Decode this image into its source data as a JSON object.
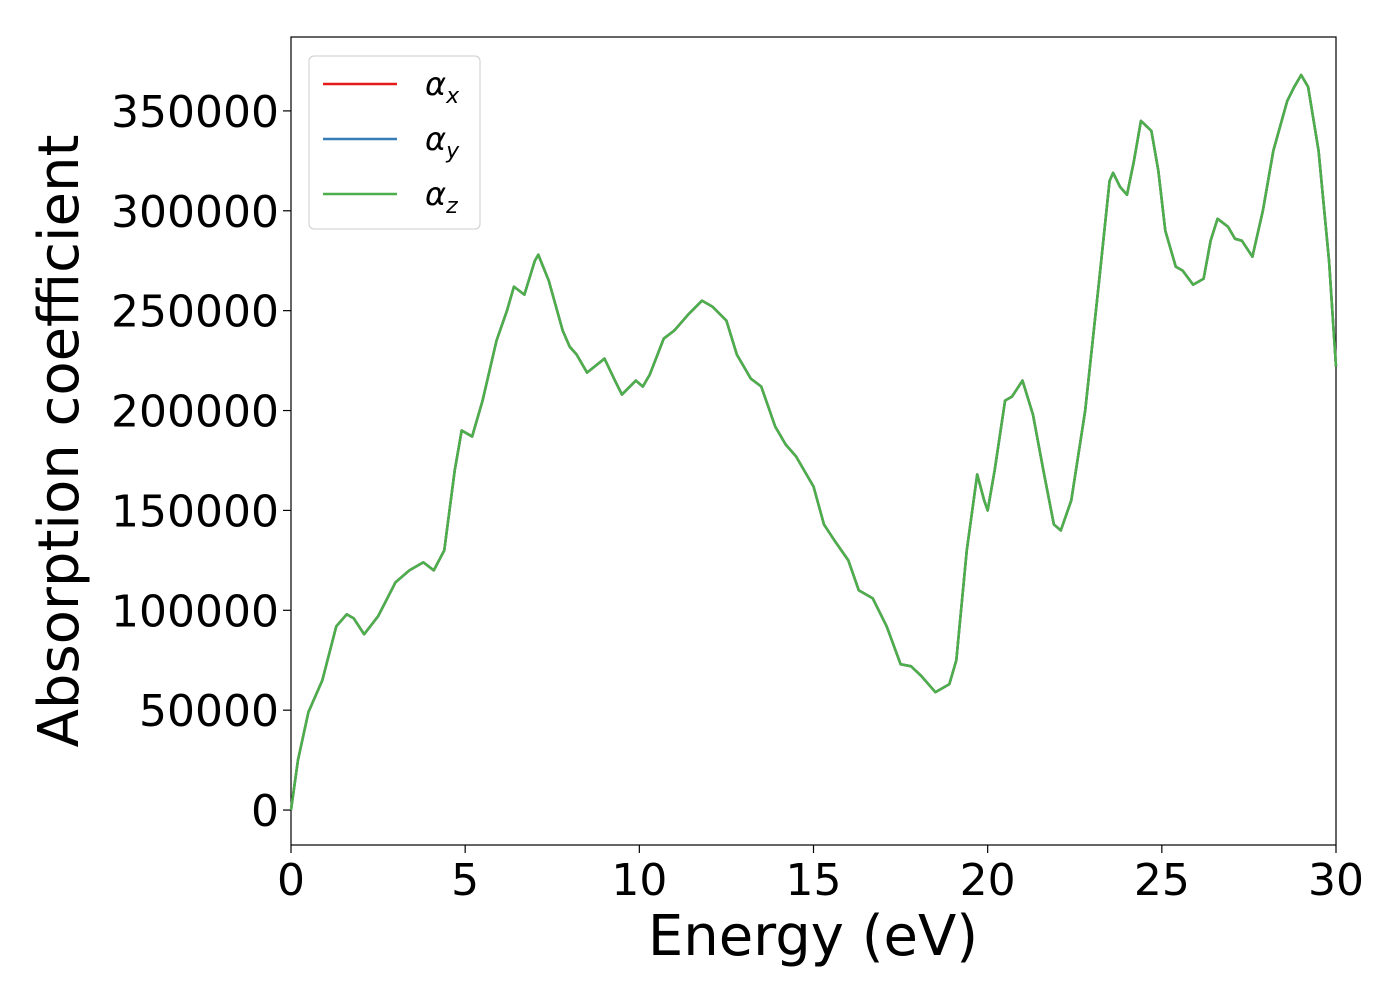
{
  "chart_data": {
    "type": "line",
    "xlabel": "Energy (eV)",
    "ylabel": "Absorption coefficient",
    "x": [
      0,
      0.2,
      0.3,
      0.5,
      0.9,
      1.3,
      1.6,
      1.8,
      2.1,
      2.5,
      3.0,
      3.4,
      3.8,
      4.1,
      4.4,
      4.7,
      4.9,
      5.2,
      5.5,
      5.9,
      6.2,
      6.4,
      6.7,
      7.0,
      7.1,
      7.4,
      7.8,
      8.0,
      8.2,
      8.5,
      9.0,
      9.3,
      9.5,
      9.9,
      10.1,
      10.3,
      10.7,
      11.0,
      11.4,
      11.8,
      12.1,
      12.5,
      12.8,
      13.2,
      13.5,
      13.9,
      14.2,
      14.5,
      15.0,
      15.3,
      15.6,
      16.0,
      16.3,
      16.7,
      17.1,
      17.5,
      17.8,
      18.1,
      18.5,
      18.9,
      19.1,
      19.4,
      19.7,
      19.9,
      20.0,
      20.2,
      20.5,
      20.7,
      21.0,
      21.3,
      21.6,
      21.9,
      22.1,
      22.4,
      22.8,
      23.2,
      23.5,
      23.6,
      23.8,
      24.0,
      24.2,
      24.4,
      24.7,
      24.9,
      25.1,
      25.4,
      25.6,
      25.9,
      26.2,
      26.4,
      26.6,
      26.9,
      27.1,
      27.3,
      27.6,
      27.9,
      28.2,
      28.6,
      28.8,
      29.0,
      29.2,
      29.5,
      29.8,
      30.0
    ],
    "series": [
      {
        "name": "αx",
        "color": "#e41a1c",
        "values": [
          0,
          25000,
          33000,
          49000,
          65000,
          92000,
          98000,
          96000,
          88000,
          97000,
          114000,
          120000,
          124000,
          120000,
          130000,
          170000,
          190000,
          187000,
          205000,
          235000,
          250000,
          262000,
          258000,
          275000,
          278000,
          265000,
          240000,
          232000,
          228000,
          219000,
          226000,
          215000,
          208000,
          215000,
          212000,
          218000,
          236000,
          240000,
          248000,
          255000,
          252000,
          245000,
          228000,
          216000,
          212000,
          192000,
          183000,
          177000,
          162000,
          143000,
          135000,
          125000,
          110000,
          106000,
          92000,
          73000,
          72000,
          67000,
          59000,
          63000,
          75000,
          130000,
          168000,
          155000,
          150000,
          170000,
          205000,
          207000,
          215000,
          198000,
          170000,
          143000,
          140000,
          155000,
          200000,
          265000,
          315000,
          319000,
          312000,
          308000,
          325000,
          345000,
          340000,
          320000,
          290000,
          272000,
          270000,
          263000,
          266000,
          285000,
          296000,
          292000,
          286000,
          285000,
          277000,
          300000,
          330000,
          355000,
          362000,
          368000,
          362000,
          330000,
          275000,
          222000
        ]
      },
      {
        "name": "αy",
        "color": "#377eb8",
        "values": [
          0,
          25000,
          33000,
          49000,
          65000,
          92000,
          98000,
          96000,
          88000,
          97000,
          114000,
          120000,
          124000,
          120000,
          130000,
          170000,
          190000,
          187000,
          205000,
          235000,
          250000,
          262000,
          258000,
          275000,
          278000,
          265000,
          240000,
          232000,
          228000,
          219000,
          226000,
          215000,
          208000,
          215000,
          212000,
          218000,
          236000,
          240000,
          248000,
          255000,
          252000,
          245000,
          228000,
          216000,
          212000,
          192000,
          183000,
          177000,
          162000,
          143000,
          135000,
          125000,
          110000,
          106000,
          92000,
          73000,
          72000,
          67000,
          59000,
          63000,
          75000,
          130000,
          168000,
          155000,
          150000,
          170000,
          205000,
          207000,
          215000,
          198000,
          170000,
          143000,
          140000,
          155000,
          200000,
          265000,
          315000,
          319000,
          312000,
          308000,
          325000,
          345000,
          340000,
          320000,
          290000,
          272000,
          270000,
          263000,
          266000,
          285000,
          296000,
          292000,
          286000,
          285000,
          277000,
          300000,
          330000,
          355000,
          362000,
          368000,
          362000,
          330000,
          275000,
          222000
        ]
      },
      {
        "name": "αz",
        "color": "#4daf4a",
        "values": [
          0,
          25000,
          33000,
          49000,
          65000,
          92000,
          98000,
          96000,
          88000,
          97000,
          114000,
          120000,
          124000,
          120000,
          130000,
          170000,
          190000,
          187000,
          205000,
          235000,
          250000,
          262000,
          258000,
          275000,
          278000,
          265000,
          240000,
          232000,
          228000,
          219000,
          226000,
          215000,
          208000,
          215000,
          212000,
          218000,
          236000,
          240000,
          248000,
          255000,
          252000,
          245000,
          228000,
          216000,
          212000,
          192000,
          183000,
          177000,
          162000,
          143000,
          135000,
          125000,
          110000,
          106000,
          92000,
          73000,
          72000,
          67000,
          59000,
          63000,
          75000,
          130000,
          168000,
          155000,
          150000,
          170000,
          205000,
          207000,
          215000,
          198000,
          170000,
          143000,
          140000,
          155000,
          200000,
          265000,
          315000,
          319000,
          312000,
          308000,
          325000,
          345000,
          340000,
          320000,
          290000,
          272000,
          270000,
          263000,
          266000,
          285000,
          296000,
          292000,
          286000,
          285000,
          277000,
          300000,
          330000,
          355000,
          362000,
          368000,
          362000,
          330000,
          275000,
          222000
        ]
      }
    ],
    "xlim": [
      0,
      30
    ],
    "xticks": [
      0,
      5,
      10,
      15,
      20,
      25,
      30
    ],
    "ylim": [
      -17500,
      387000
    ],
    "yticks": [
      0,
      50000,
      100000,
      150000,
      200000,
      250000,
      300000,
      350000
    ],
    "legend": "upper left"
  }
}
